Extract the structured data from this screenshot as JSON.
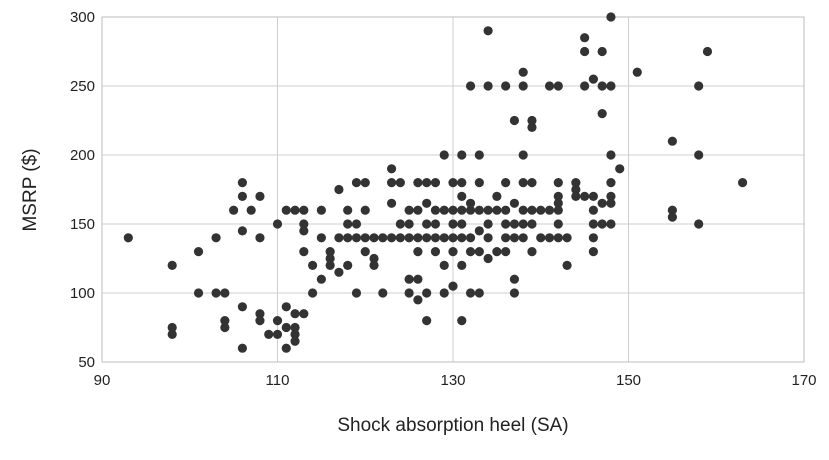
{
  "chart_data": {
    "type": "scatter",
    "title": "",
    "xlabel": "Shock absorption heel (SA)",
    "ylabel": "MSRP ($)",
    "xlim": [
      90,
      170
    ],
    "ylim": [
      50,
      300
    ],
    "x_ticks": [
      90,
      110,
      130,
      150,
      170
    ],
    "y_ticks": [
      50,
      100,
      150,
      200,
      250,
      300
    ],
    "grid": true,
    "legend": "none",
    "marker_color": "#333333",
    "points": [
      [
        93,
        140
      ],
      [
        98,
        120
      ],
      [
        98,
        75
      ],
      [
        98,
        70
      ],
      [
        101,
        130
      ],
      [
        101,
        100
      ],
      [
        103,
        140
      ],
      [
        103,
        100
      ],
      [
        104,
        100
      ],
      [
        104,
        80
      ],
      [
        104,
        75
      ],
      [
        105,
        160
      ],
      [
        106,
        180
      ],
      [
        106,
        170
      ],
      [
        106,
        145
      ],
      [
        106,
        90
      ],
      [
        106,
        60
      ],
      [
        107,
        160
      ],
      [
        108,
        170
      ],
      [
        108,
        140
      ],
      [
        108,
        85
      ],
      [
        108,
        80
      ],
      [
        109,
        70
      ],
      [
        110,
        150
      ],
      [
        110,
        80
      ],
      [
        110,
        70
      ],
      [
        111,
        160
      ],
      [
        111,
        90
      ],
      [
        111,
        75
      ],
      [
        111,
        60
      ],
      [
        112,
        160
      ],
      [
        112,
        75
      ],
      [
        112,
        70
      ],
      [
        112,
        65
      ],
      [
        112,
        85
      ],
      [
        113,
        160
      ],
      [
        113,
        150
      ],
      [
        113,
        145
      ],
      [
        113,
        130
      ],
      [
        113,
        85
      ],
      [
        114,
        120
      ],
      [
        114,
        100
      ],
      [
        115,
        160
      ],
      [
        115,
        140
      ],
      [
        115,
        110
      ],
      [
        116,
        130
      ],
      [
        116,
        125
      ],
      [
        116,
        120
      ],
      [
        117,
        175
      ],
      [
        117,
        140
      ],
      [
        117,
        115
      ],
      [
        118,
        160
      ],
      [
        118,
        150
      ],
      [
        118,
        140
      ],
      [
        118,
        120
      ],
      [
        119,
        180
      ],
      [
        119,
        150
      ],
      [
        119,
        140
      ],
      [
        119,
        100
      ],
      [
        120,
        180
      ],
      [
        120,
        160
      ],
      [
        120,
        140
      ],
      [
        120,
        130
      ],
      [
        121,
        140
      ],
      [
        121,
        125
      ],
      [
        121,
        120
      ],
      [
        122,
        140
      ],
      [
        122,
        100
      ],
      [
        123,
        190
      ],
      [
        123,
        180
      ],
      [
        123,
        165
      ],
      [
        123,
        140
      ],
      [
        124,
        180
      ],
      [
        124,
        150
      ],
      [
        124,
        140
      ],
      [
        125,
        160
      ],
      [
        125,
        150
      ],
      [
        125,
        140
      ],
      [
        125,
        110
      ],
      [
        125,
        100
      ],
      [
        126,
        180
      ],
      [
        126,
        160
      ],
      [
        126,
        140
      ],
      [
        126,
        130
      ],
      [
        126,
        110
      ],
      [
        126,
        95
      ],
      [
        127,
        180
      ],
      [
        127,
        165
      ],
      [
        127,
        150
      ],
      [
        127,
        140
      ],
      [
        127,
        100
      ],
      [
        127,
        80
      ],
      [
        128,
        180
      ],
      [
        128,
        160
      ],
      [
        128,
        150
      ],
      [
        128,
        140
      ],
      [
        128,
        130
      ],
      [
        129,
        200
      ],
      [
        129,
        160
      ],
      [
        129,
        140
      ],
      [
        129,
        120
      ],
      [
        129,
        100
      ],
      [
        130,
        180
      ],
      [
        130,
        160
      ],
      [
        130,
        150
      ],
      [
        130,
        140
      ],
      [
        130,
        130
      ],
      [
        130,
        105
      ],
      [
        131,
        200
      ],
      [
        131,
        180
      ],
      [
        131,
        170
      ],
      [
        131,
        160
      ],
      [
        131,
        150
      ],
      [
        131,
        140
      ],
      [
        131,
        120
      ],
      [
        131,
        80
      ],
      [
        132,
        250
      ],
      [
        132,
        165
      ],
      [
        132,
        160
      ],
      [
        132,
        140
      ],
      [
        132,
        130
      ],
      [
        132,
        100
      ],
      [
        133,
        200
      ],
      [
        133,
        180
      ],
      [
        133,
        160
      ],
      [
        133,
        145
      ],
      [
        133,
        130
      ],
      [
        133,
        100
      ],
      [
        134,
        290
      ],
      [
        134,
        250
      ],
      [
        134,
        160
      ],
      [
        134,
        150
      ],
      [
        134,
        140
      ],
      [
        134,
        125
      ],
      [
        135,
        170
      ],
      [
        135,
        160
      ],
      [
        135,
        130
      ],
      [
        136,
        250
      ],
      [
        136,
        180
      ],
      [
        136,
        160
      ],
      [
        136,
        150
      ],
      [
        136,
        140
      ],
      [
        136,
        130
      ],
      [
        137,
        225
      ],
      [
        137,
        165
      ],
      [
        137,
        150
      ],
      [
        137,
        140
      ],
      [
        137,
        110
      ],
      [
        137,
        100
      ],
      [
        138,
        260
      ],
      [
        138,
        250
      ],
      [
        138,
        200
      ],
      [
        138,
        180
      ],
      [
        138,
        160
      ],
      [
        138,
        150
      ],
      [
        138,
        140
      ],
      [
        139,
        225
      ],
      [
        139,
        220
      ],
      [
        139,
        180
      ],
      [
        139,
        160
      ],
      [
        139,
        150
      ],
      [
        139,
        130
      ],
      [
        140,
        160
      ],
      [
        140,
        140
      ],
      [
        141,
        250
      ],
      [
        141,
        160
      ],
      [
        141,
        140
      ],
      [
        142,
        250
      ],
      [
        142,
        180
      ],
      [
        142,
        170
      ],
      [
        142,
        165
      ],
      [
        142,
        160
      ],
      [
        142,
        150
      ],
      [
        142,
        140
      ],
      [
        143,
        140
      ],
      [
        143,
        120
      ],
      [
        144,
        175
      ],
      [
        144,
        170
      ],
      [
        144,
        180
      ],
      [
        145,
        285
      ],
      [
        145,
        275
      ],
      [
        145,
        170
      ],
      [
        145,
        250
      ],
      [
        146,
        160
      ],
      [
        146,
        140
      ],
      [
        146,
        130
      ],
      [
        146,
        150
      ],
      [
        146,
        170
      ],
      [
        146,
        255
      ],
      [
        147,
        250
      ],
      [
        147,
        230
      ],
      [
        147,
        165
      ],
      [
        147,
        150
      ],
      [
        147,
        275
      ],
      [
        148,
        300
      ],
      [
        148,
        250
      ],
      [
        148,
        200
      ],
      [
        148,
        180
      ],
      [
        148,
        170
      ],
      [
        148,
        165
      ],
      [
        148,
        150
      ],
      [
        149,
        190
      ],
      [
        151,
        260
      ],
      [
        155,
        210
      ],
      [
        155,
        160
      ],
      [
        155,
        155
      ],
      [
        158,
        200
      ],
      [
        158,
        150
      ],
      [
        158,
        250
      ],
      [
        159,
        275
      ],
      [
        163,
        180
      ]
    ]
  }
}
